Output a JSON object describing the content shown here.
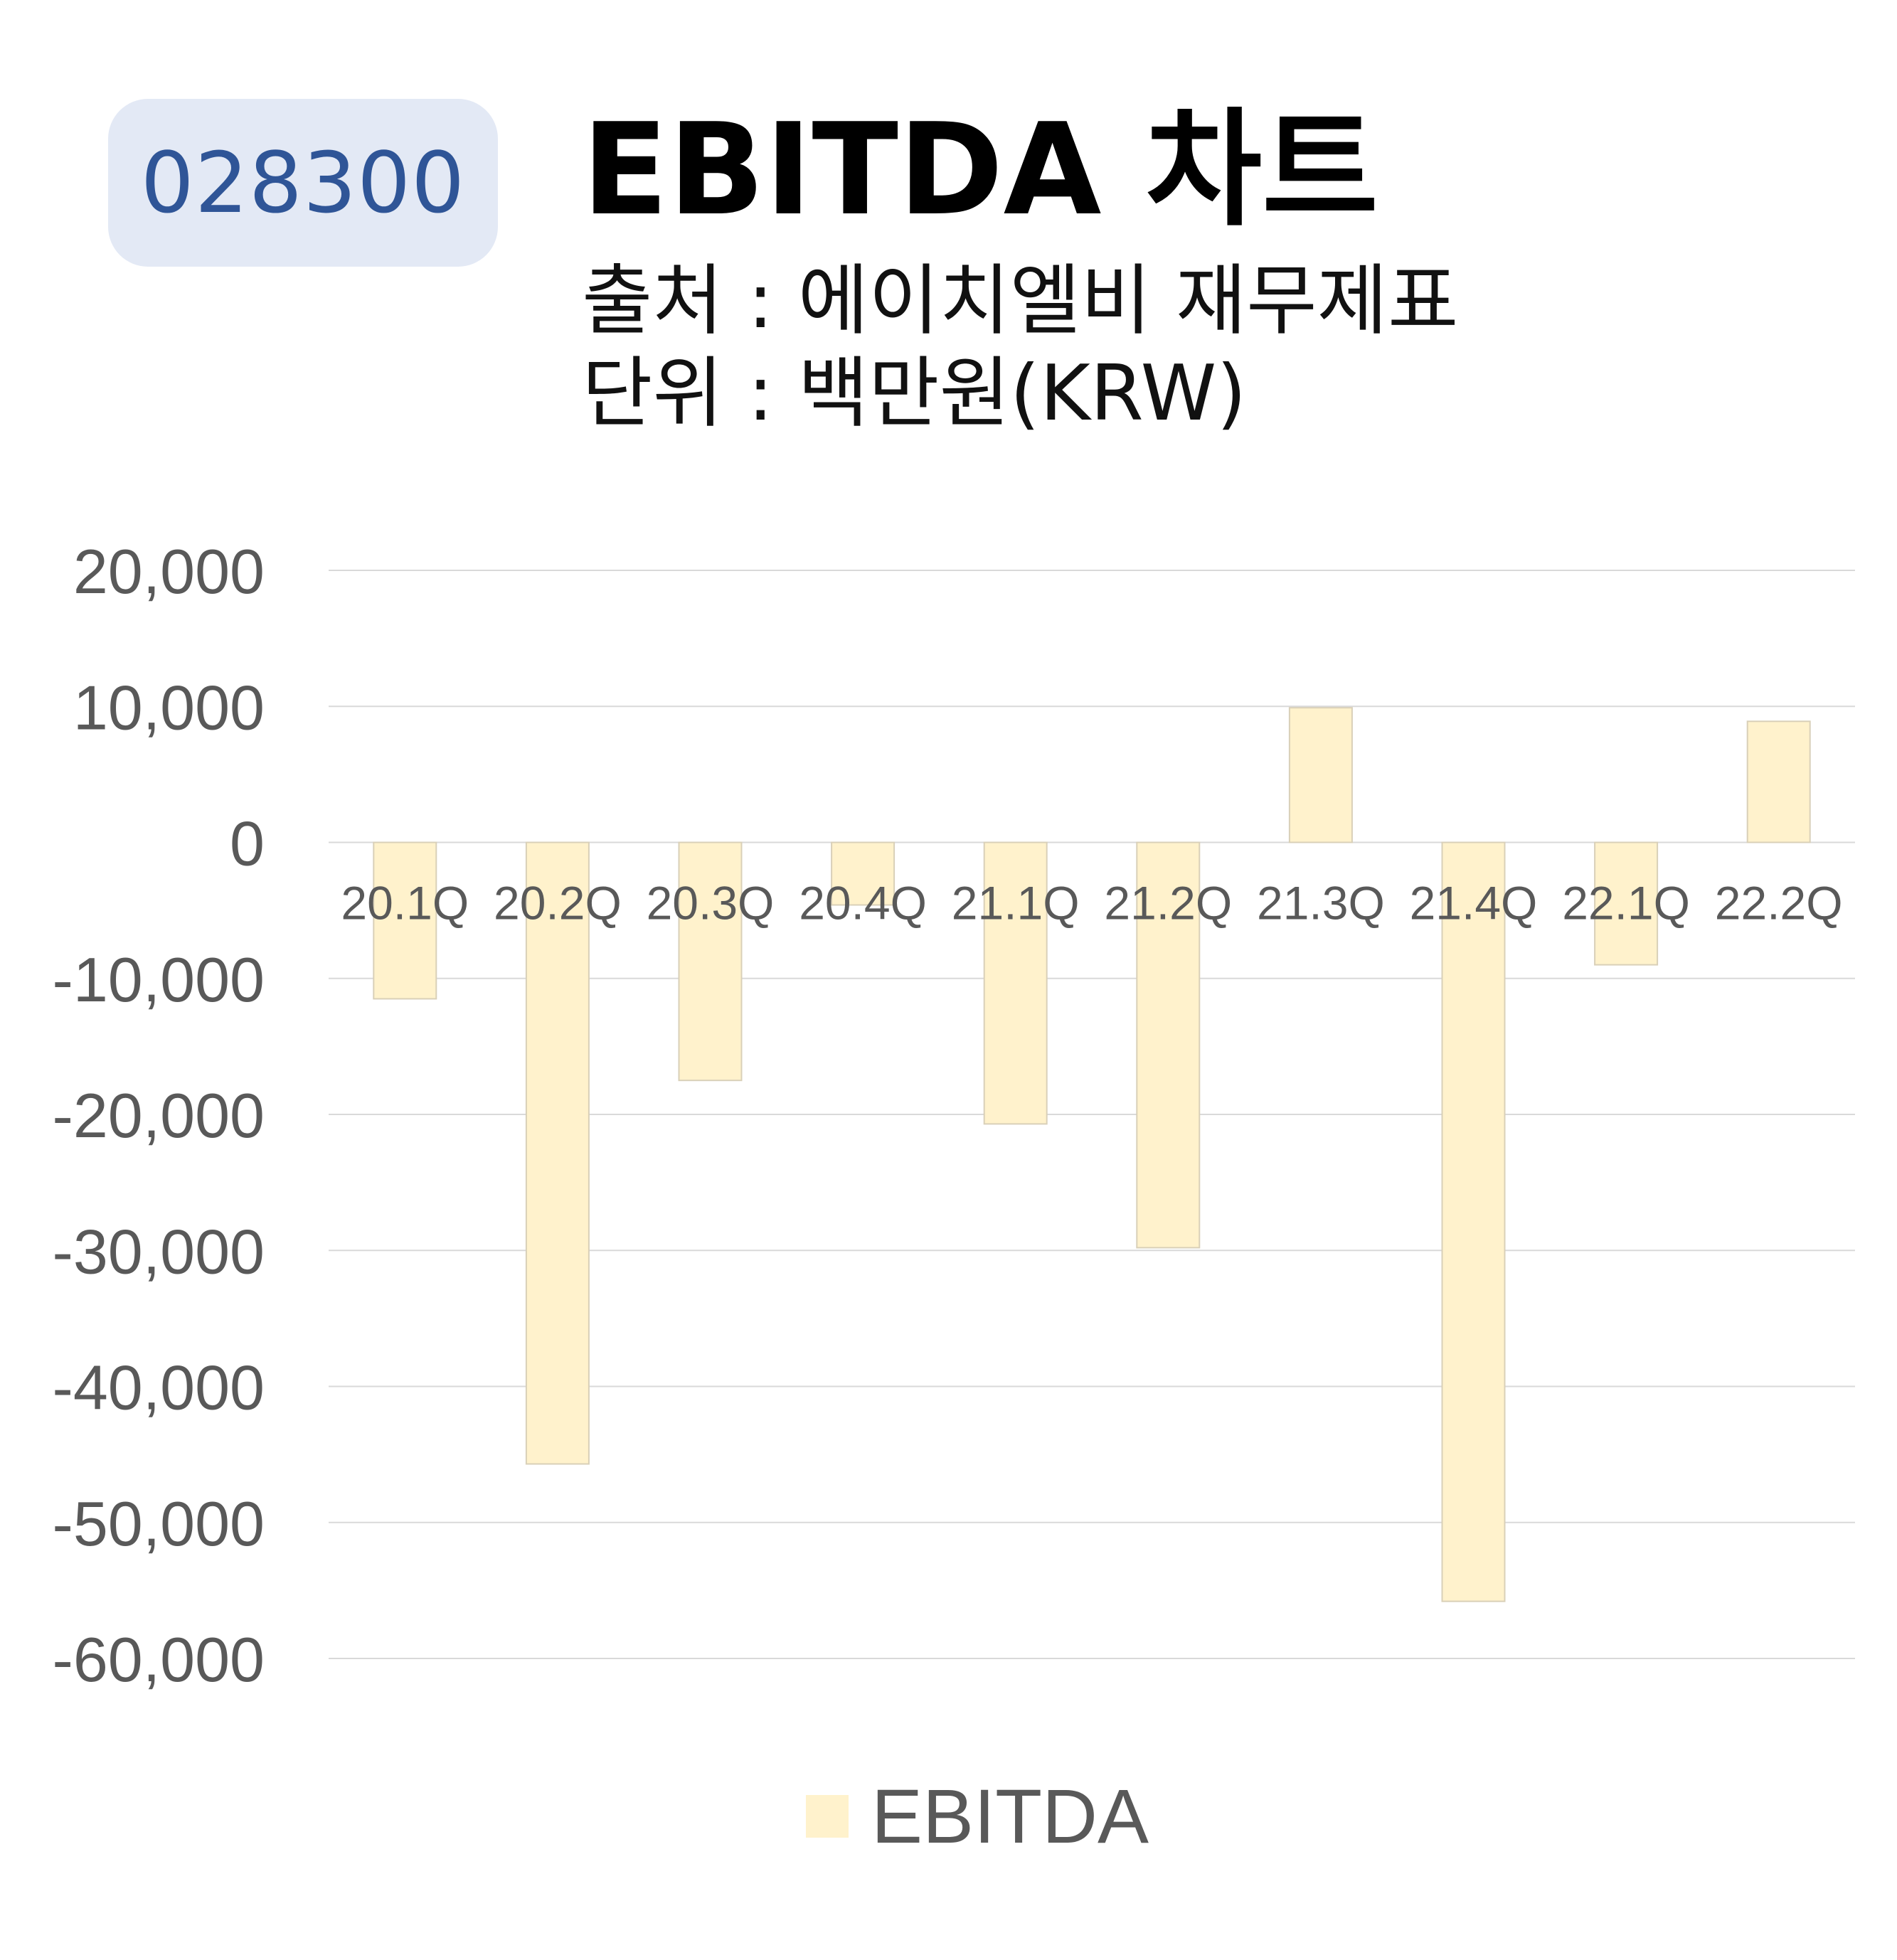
{
  "header": {
    "ticker": "028300",
    "title": "EBITDA 차트",
    "source": "출처 : 에이치엘비 재무제표",
    "unit": "단위 : 백만원(KRW)"
  },
  "colors": {
    "bar": "#fff2cc",
    "bar_edge": "#d9d0b8",
    "grid": "#d9d9d9",
    "tick_text": "#595959",
    "ticker_bg": "#e3e9f5",
    "ticker_text": "#2f5597"
  },
  "chart_data": {
    "type": "bar",
    "categories": [
      "20.1Q",
      "20.2Q",
      "20.3Q",
      "20.4Q",
      "21.1Q",
      "21.2Q",
      "21.3Q",
      "21.4Q",
      "22.1Q",
      "22.2Q"
    ],
    "series": [
      {
        "name": "EBITDA",
        "values": [
          -11500,
          -45700,
          -17500,
          -4600,
          -20700,
          -29800,
          9900,
          -55800,
          -9000,
          8900
        ]
      }
    ],
    "ylim": [
      -60000,
      20000
    ],
    "yticks": [
      20000,
      10000,
      0,
      -10000,
      -20000,
      -30000,
      -40000,
      -50000,
      -60000
    ],
    "ytick_labels": [
      "20,000",
      "10,000",
      "0",
      "-10,000",
      "-20,000",
      "-30,000",
      "-40,000",
      "-50,000",
      "-60,000"
    ],
    "grid": true,
    "legend": "bottom"
  }
}
